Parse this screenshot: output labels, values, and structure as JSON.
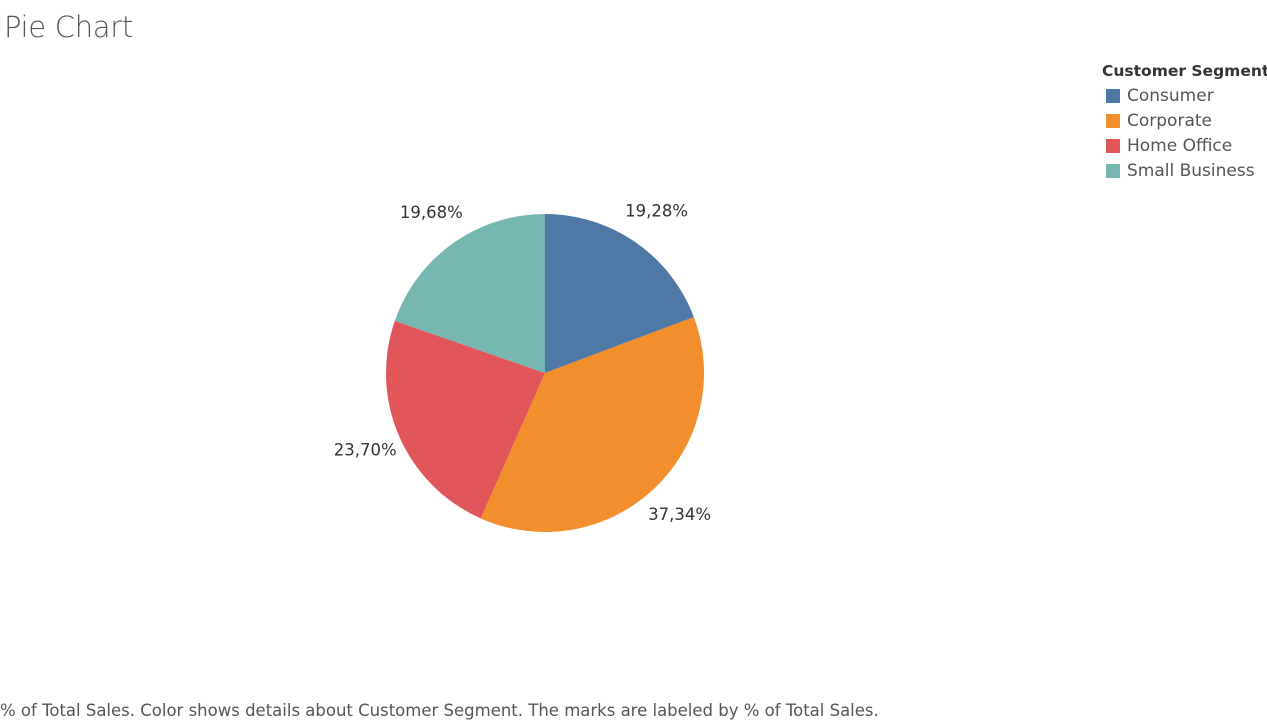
{
  "title": "Pie Chart",
  "legend": {
    "title": "Customer Segment",
    "items": [
      {
        "label": "Consumer",
        "color": "#4e79a7"
      },
      {
        "label": "Corporate",
        "color": "#f28e2b"
      },
      {
        "label": "Home Office",
        "color": "#e15759"
      },
      {
        "label": "Small Business",
        "color": "#76b7b2"
      }
    ]
  },
  "caption": "% of Total Sales.  Color shows details about Customer Segment.  The marks are labeled by % of Total Sales.",
  "chart_data": {
    "type": "pie",
    "title": "Pie Chart",
    "legend_title": "Customer Segment",
    "legend_position": "top-right",
    "slices": [
      {
        "name": "Consumer",
        "value": 19.28,
        "label": "19,28%",
        "color": "#4e79a7"
      },
      {
        "name": "Corporate",
        "value": 37.34,
        "label": "37,34%",
        "color": "#f28e2b"
      },
      {
        "name": "Home Office",
        "value": 23.7,
        "label": "23,70%",
        "color": "#e15759"
      },
      {
        "name": "Small Business",
        "value": 19.68,
        "label": "19,68%",
        "color": "#76b7b2"
      }
    ]
  }
}
